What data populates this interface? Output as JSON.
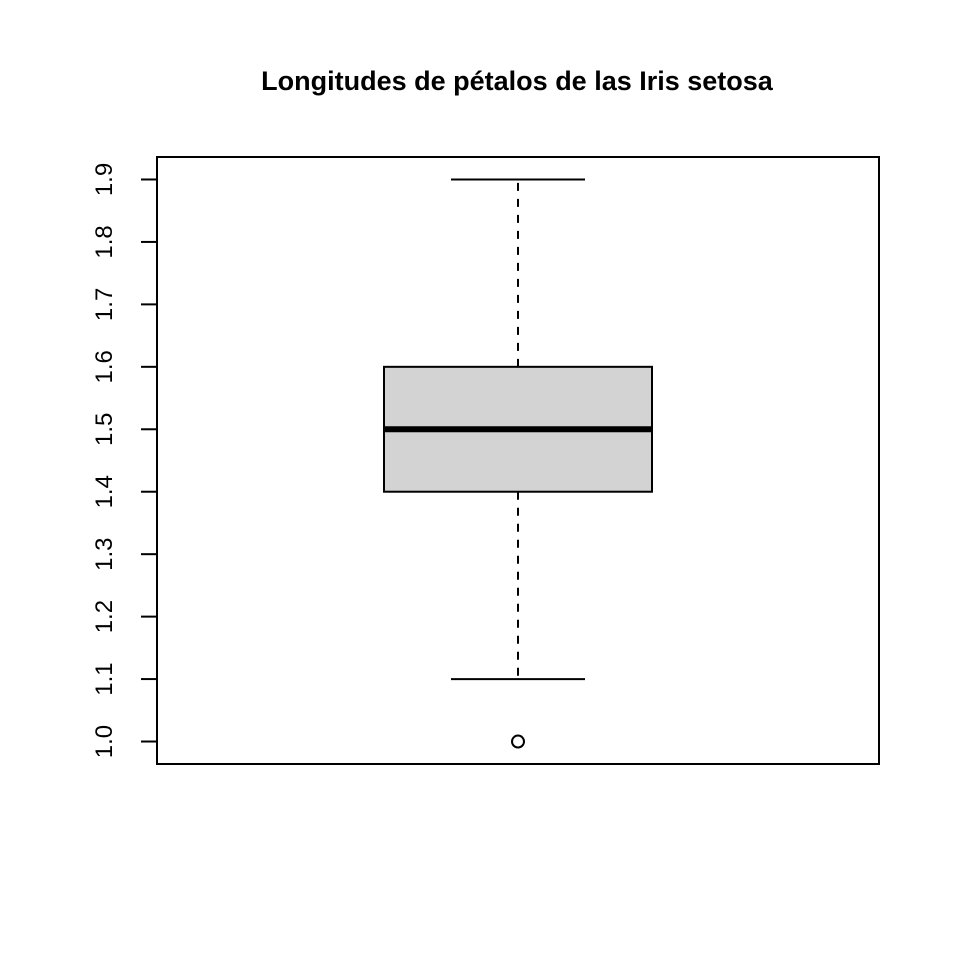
{
  "chart_data": {
    "type": "boxplot",
    "title": "Longitudes de pétalos de las Iris setosa",
    "xlabel": "",
    "ylabel": "",
    "ylim": [
      0.964,
      1.936
    ],
    "yticks": [
      1.0,
      1.1,
      1.2,
      1.3,
      1.4,
      1.5,
      1.6,
      1.7,
      1.8,
      1.9
    ],
    "ytick_labels": [
      "1.0",
      "1.1",
      "1.2",
      "1.3",
      "1.4",
      "1.5",
      "1.6",
      "1.7",
      "1.8",
      "1.9"
    ],
    "grid": false,
    "boxes": [
      {
        "whisker_low": 1.1,
        "q1": 1.4,
        "median": 1.5,
        "q3": 1.6,
        "whisker_high": 1.9,
        "outliers": [
          1.0
        ]
      }
    ],
    "colors": {
      "box_fill": "#d3d3d3",
      "stroke": "#000000",
      "background": "#ffffff"
    }
  }
}
